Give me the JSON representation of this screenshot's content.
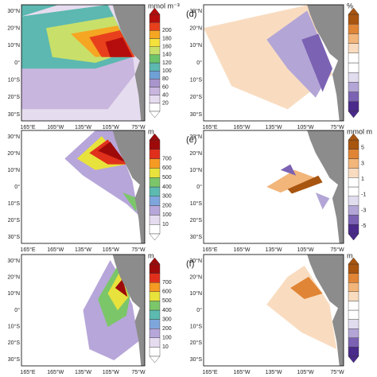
{
  "lat_labels": [
    "30°N",
    "20°N",
    "10°N",
    "0°",
    "10°S",
    "20°S",
    "30°S"
  ],
  "lon_labels": [
    "165°E",
    "165°W",
    "135°W",
    "105°W",
    "75°W"
  ],
  "panels": [
    {
      "unit": "mmol m⁻³",
      "colorbar": [
        "20",
        "40",
        "60",
        "80",
        "100",
        "120",
        "140",
        "160",
        "180",
        "200"
      ]
    },
    {
      "unit": "m",
      "colorbar": [
        "10",
        "100",
        "200",
        "300",
        "400",
        "500",
        "600",
        "700"
      ]
    },
    {
      "unit": "m",
      "colorbar": [
        "10",
        "100",
        "200",
        "300",
        "400",
        "500",
        "600",
        "700"
      ]
    },
    {
      "label": "(d)",
      "unit": "%"
    },
    {
      "label": "(e)",
      "unit": "mmol m",
      "colorbar": [
        "5",
        "3",
        "1",
        "-1",
        "-3",
        "-5"
      ]
    },
    {
      "label": "(f)",
      "unit": "m"
    }
  ]
}
